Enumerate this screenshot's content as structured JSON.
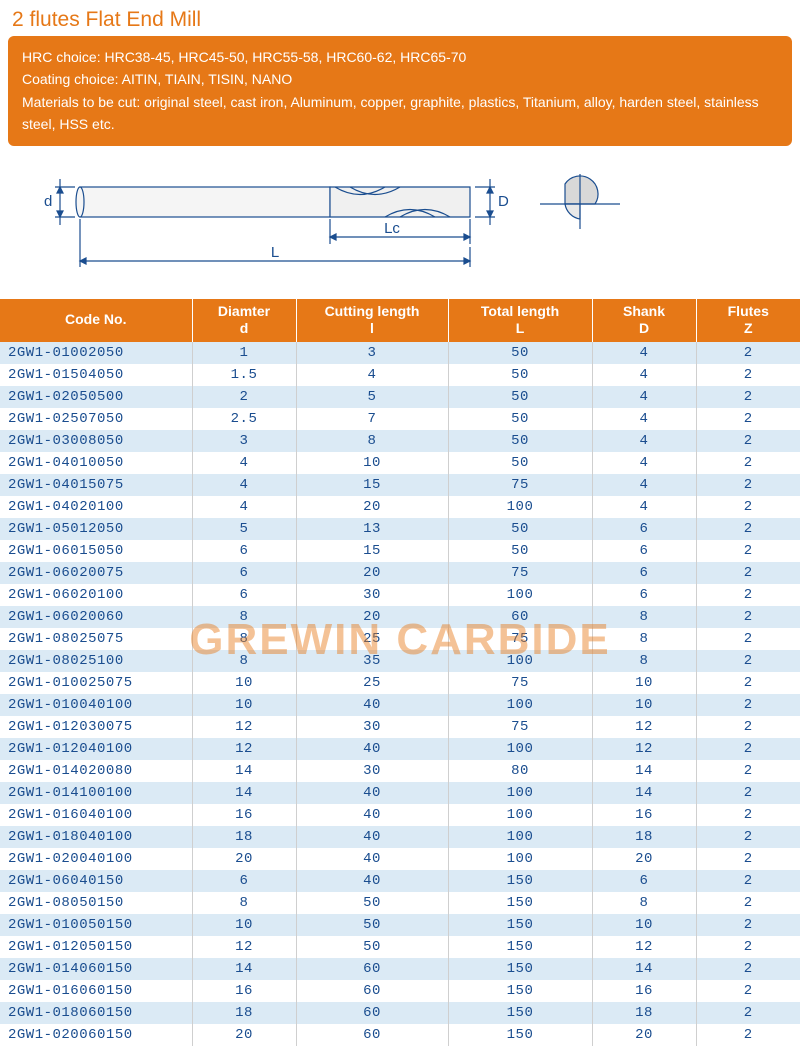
{
  "title": "2 flutes Flat End Mill",
  "info": {
    "line1": "HRC choice:  HRC38-45, HRC45-50, HRC55-58, HRC60-62,  HRC65-70",
    "line2": "Coating choice:  AITIN, TIAIN, TISIN, NANO",
    "line3": "Materials to be cut:  original steel, cast iron, Aluminum, copper, graphite, plastics, Titanium, alloy, harden steel, stainless steel, HSS etc."
  },
  "diagram": {
    "label_d": "d",
    "label_D": "D",
    "label_Lc": "Lc",
    "label_L": "L",
    "stroke": "#1a4d8f",
    "fill_light": "#e8e8e8"
  },
  "watermark": "GREWIN CARBIDE",
  "table": {
    "header_bg": "#e67817",
    "header_fg": "#ffffff",
    "row_even_bg": "#dbeaf5",
    "row_odd_bg": "#ffffff",
    "cell_fg": "#1a4d8f",
    "columns": [
      {
        "l1": "Code No.",
        "l2": "",
        "width": "24%"
      },
      {
        "l1": "Diamter",
        "l2": "d",
        "width": "13%"
      },
      {
        "l1": "Cutting length",
        "l2": "l",
        "width": "19%"
      },
      {
        "l1": "Total length",
        "l2": "L",
        "width": "18%"
      },
      {
        "l1": "Shank",
        "l2": "D",
        "width": "13%"
      },
      {
        "l1": "Flutes",
        "l2": "Z",
        "width": "13%"
      }
    ],
    "rows": [
      [
        "2GW1-01002050",
        "1",
        "3",
        "50",
        "4",
        "2"
      ],
      [
        "2GW1-01504050",
        "1.5",
        "4",
        "50",
        "4",
        "2"
      ],
      [
        "2GW1-02050500",
        "2",
        "5",
        "50",
        "4",
        "2"
      ],
      [
        "2GW1-02507050",
        "2.5",
        "7",
        "50",
        "4",
        "2"
      ],
      [
        "2GW1-03008050",
        "3",
        "8",
        "50",
        "4",
        "2"
      ],
      [
        "2GW1-04010050",
        "4",
        "10",
        "50",
        "4",
        "2"
      ],
      [
        "2GW1-04015075",
        "4",
        "15",
        "75",
        "4",
        "2"
      ],
      [
        "2GW1-04020100",
        "4",
        "20",
        "100",
        "4",
        "2"
      ],
      [
        "2GW1-05012050",
        "5",
        "13",
        "50",
        "6",
        "2"
      ],
      [
        "2GW1-06015050",
        "6",
        "15",
        "50",
        "6",
        "2"
      ],
      [
        "2GW1-06020075",
        "6",
        "20",
        "75",
        "6",
        "2"
      ],
      [
        "2GW1-06020100",
        "6",
        "30",
        "100",
        "6",
        "2"
      ],
      [
        "2GW1-06020060",
        "8",
        "20",
        "60",
        "8",
        "2"
      ],
      [
        "2GW1-08025075",
        "8",
        "25",
        "75",
        "8",
        "2"
      ],
      [
        "2GW1-08025100",
        "8",
        "35",
        "100",
        "8",
        "2"
      ],
      [
        "2GW1-010025075",
        "10",
        "25",
        "75",
        "10",
        "2"
      ],
      [
        "2GW1-010040100",
        "10",
        "40",
        "100",
        "10",
        "2"
      ],
      [
        "2GW1-012030075",
        "12",
        "30",
        "75",
        "12",
        "2"
      ],
      [
        "2GW1-012040100",
        "12",
        "40",
        "100",
        "12",
        "2"
      ],
      [
        "2GW1-014020080",
        "14",
        "30",
        "80",
        "14",
        "2"
      ],
      [
        "2GW1-014100100",
        "14",
        "40",
        "100",
        "14",
        "2"
      ],
      [
        "2GW1-016040100",
        "16",
        "40",
        "100",
        "16",
        "2"
      ],
      [
        "2GW1-018040100",
        "18",
        "40",
        "100",
        "18",
        "2"
      ],
      [
        "2GW1-020040100",
        "20",
        "40",
        "100",
        "20",
        "2"
      ],
      [
        "2GW1-06040150",
        "6",
        "40",
        "150",
        "6",
        "2"
      ],
      [
        "2GW1-08050150",
        "8",
        "50",
        "150",
        "8",
        "2"
      ],
      [
        "2GW1-010050150",
        "10",
        "50",
        "150",
        "10",
        "2"
      ],
      [
        "2GW1-012050150",
        "12",
        "50",
        "150",
        "12",
        "2"
      ],
      [
        "2GW1-014060150",
        "14",
        "60",
        "150",
        "14",
        "2"
      ],
      [
        "2GW1-016060150",
        "16",
        "60",
        "150",
        "16",
        "2"
      ],
      [
        "2GW1-018060150",
        "18",
        "60",
        "150",
        "18",
        "2"
      ],
      [
        "2GW1-020060150",
        "20",
        "60",
        "150",
        "20",
        "2"
      ]
    ]
  }
}
